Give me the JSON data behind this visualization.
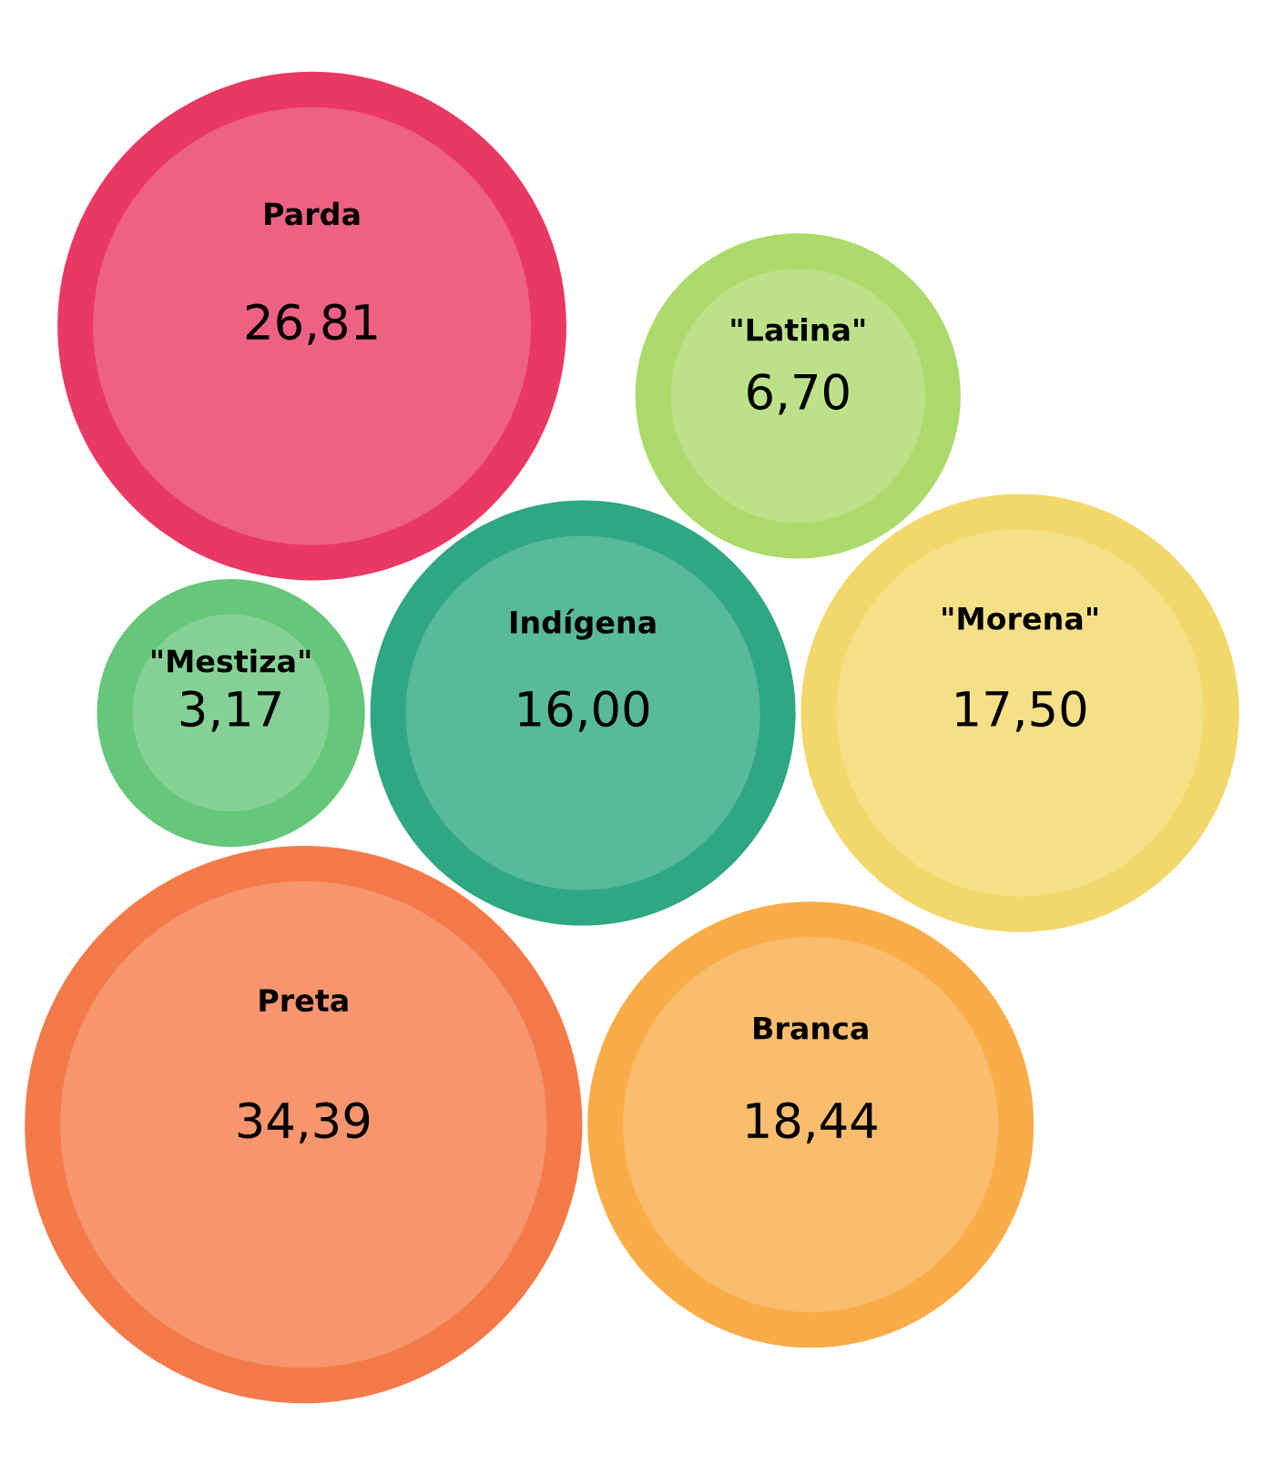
{
  "chart_data": {
    "type": "other",
    "categories": [
      "Indígena",
      "\"Morena\"",
      "\"Mestiza\"",
      "Preta",
      "Parda",
      "\"Latina\"",
      "Branca"
    ],
    "values": [
      16.0,
      17.5,
      3.17,
      34.39,
      26.81,
      6.7,
      18.44
    ],
    "value_labels": [
      "16,00",
      "17,50",
      "3,17",
      "34,39",
      "26,81",
      "6,70",
      "18,44"
    ],
    "colors": [
      "#59b99b",
      "#f5e088",
      "#85d195",
      "#f6956e",
      "#ed6182",
      "#bde189",
      "#fabd6d"
    ]
  }
}
